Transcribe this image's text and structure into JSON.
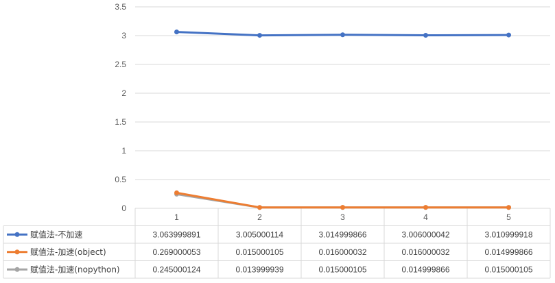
{
  "chart_data": {
    "type": "line",
    "categories": [
      "1",
      "2",
      "3",
      "4",
      "5"
    ],
    "ylim": [
      0,
      3.5
    ],
    "y_ticks": [
      "0",
      "0.5",
      "1",
      "1.5",
      "2",
      "2.5",
      "3",
      "3.5"
    ],
    "grid": true,
    "legend": "data-table-left",
    "series": [
      {
        "name": "赋值法-不加速",
        "color": "#4472C4",
        "values": [
          3.063999891,
          3.005000114,
          3.014999866,
          3.006000042,
          3.010999918
        ],
        "labels": [
          "3.063999891",
          "3.005000114",
          "3.014999866",
          "3.006000042",
          "3.010999918"
        ]
      },
      {
        "name": "赋值法-加速(object)",
        "color": "#ED7D31",
        "values": [
          0.269000053,
          0.015000105,
          0.016000032,
          0.016000032,
          0.014999866
        ],
        "labels": [
          "0.269000053",
          "0.015000105",
          "0.016000032",
          "0.016000032",
          "0.014999866"
        ]
      },
      {
        "name": "赋值法-加速(nopython)",
        "color": "#A5A5A5",
        "values": [
          0.245000124,
          0.013999939,
          0.015000105,
          0.014999866,
          0.015000105
        ],
        "labels": [
          "0.245000124",
          "0.013999939",
          "0.015000105",
          "0.014999866",
          "0.015000105"
        ]
      }
    ]
  }
}
